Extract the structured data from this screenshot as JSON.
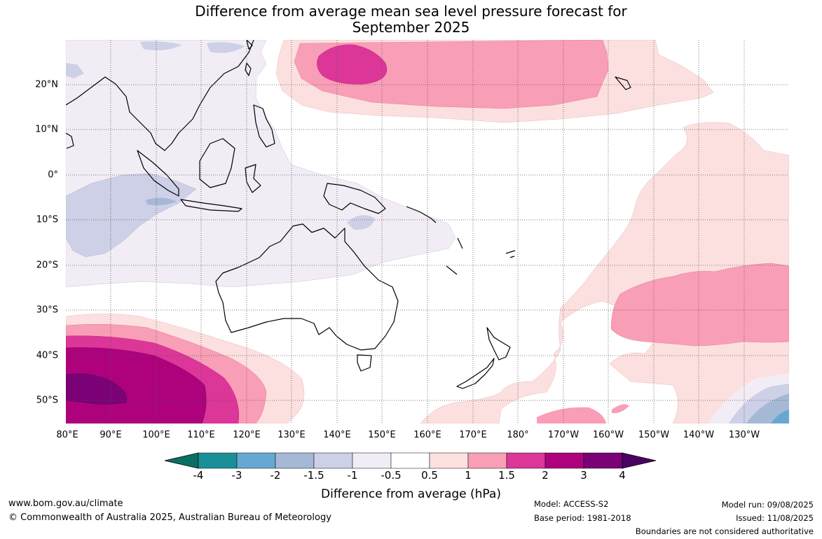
{
  "title": {
    "line1": "Difference from average mean sea level pressure forecast for",
    "line2": "September 2025"
  },
  "map": {
    "lon_ticks": [
      "80°E",
      "90°E",
      "100°E",
      "110°E",
      "120°E",
      "130°E",
      "140°E",
      "150°E",
      "160°E",
      "170°E",
      "180°",
      "170°W",
      "160°W",
      "150°W",
      "140°W",
      "130°W"
    ],
    "lat_ticks": [
      "20°N",
      "10°N",
      "0°",
      "10°S",
      "20°S",
      "30°S",
      "40°S",
      "50°S"
    ]
  },
  "colorbar": {
    "labels": [
      "-4",
      "-3",
      "-2",
      "-1.5",
      "-1",
      "-0.5",
      "0.5",
      "1",
      "1.5",
      "2",
      "3",
      "4"
    ],
    "colors": [
      "#0b6f63",
      "#1b8f97",
      "#66a8d2",
      "#a5b9d6",
      "#cdd0e6",
      "#f2ecf5",
      "#ffffff",
      "#fce0df",
      "#f99eb7",
      "#dc3699",
      "#ad027c",
      "#7a0176",
      "#4b0160"
    ],
    "title": "Difference from average (hPa)"
  },
  "colors": {
    "land_outline": "#000000",
    "grid": "#555555"
  },
  "footer": {
    "website": "www.bom.gov.au/climate",
    "copyright": "© Commonwealth of Australia 2025, Australian Bureau of Meteorology",
    "model": "Model: ACCESS-S2",
    "base_period": "Base period: 1981-2018",
    "model_run": "Model run: 09/08/2025",
    "issued": "Issued: 11/08/2025",
    "disclaimer": "Boundaries are not considered authoritative"
  }
}
